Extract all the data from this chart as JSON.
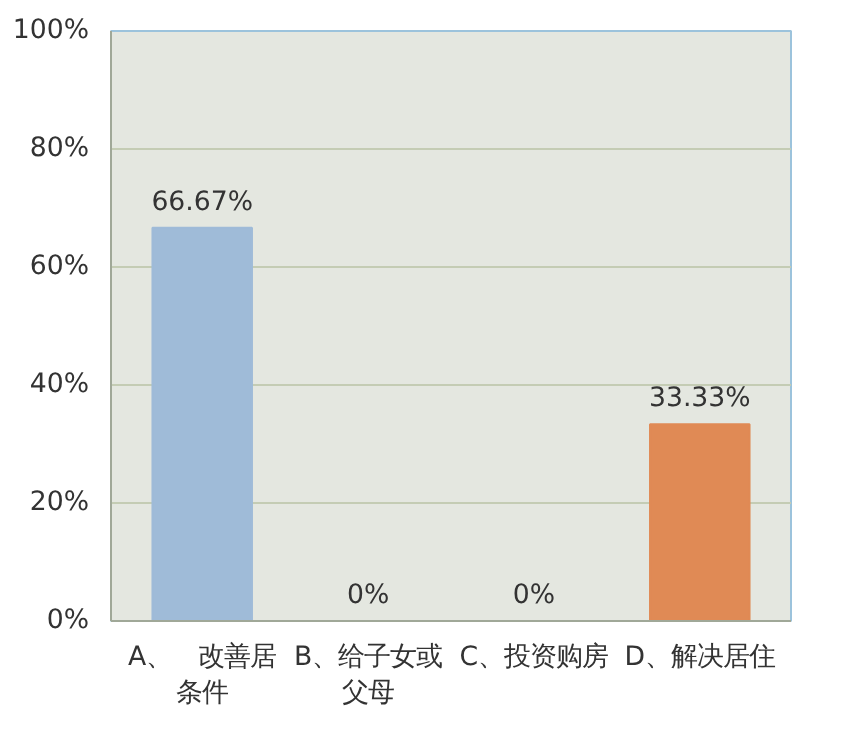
{
  "chart_data": {
    "type": "bar",
    "categories": [
      "A、　改善居条件",
      "B、给子女或父母",
      "C、投资购房",
      "D、解决居住"
    ],
    "values": [
      66.67,
      0,
      0,
      33.33
    ],
    "colors": [
      "#9fbbd8",
      "#f0c040",
      "#8fbf3a",
      "#e08a55"
    ],
    "value_labels": [
      "66.67%",
      "0%",
      "0%",
      "33.33%"
    ],
    "ylim": [
      0,
      100
    ],
    "yticks": [
      {
        "value": 0,
        "label": "0%"
      },
      {
        "value": 20,
        "label": "20%"
      },
      {
        "value": 40,
        "label": "40%"
      },
      {
        "value": 60,
        "label": "60%"
      },
      {
        "value": 80,
        "label": "80%"
      },
      {
        "value": 100,
        "label": "100%"
      }
    ],
    "grid": "y"
  }
}
